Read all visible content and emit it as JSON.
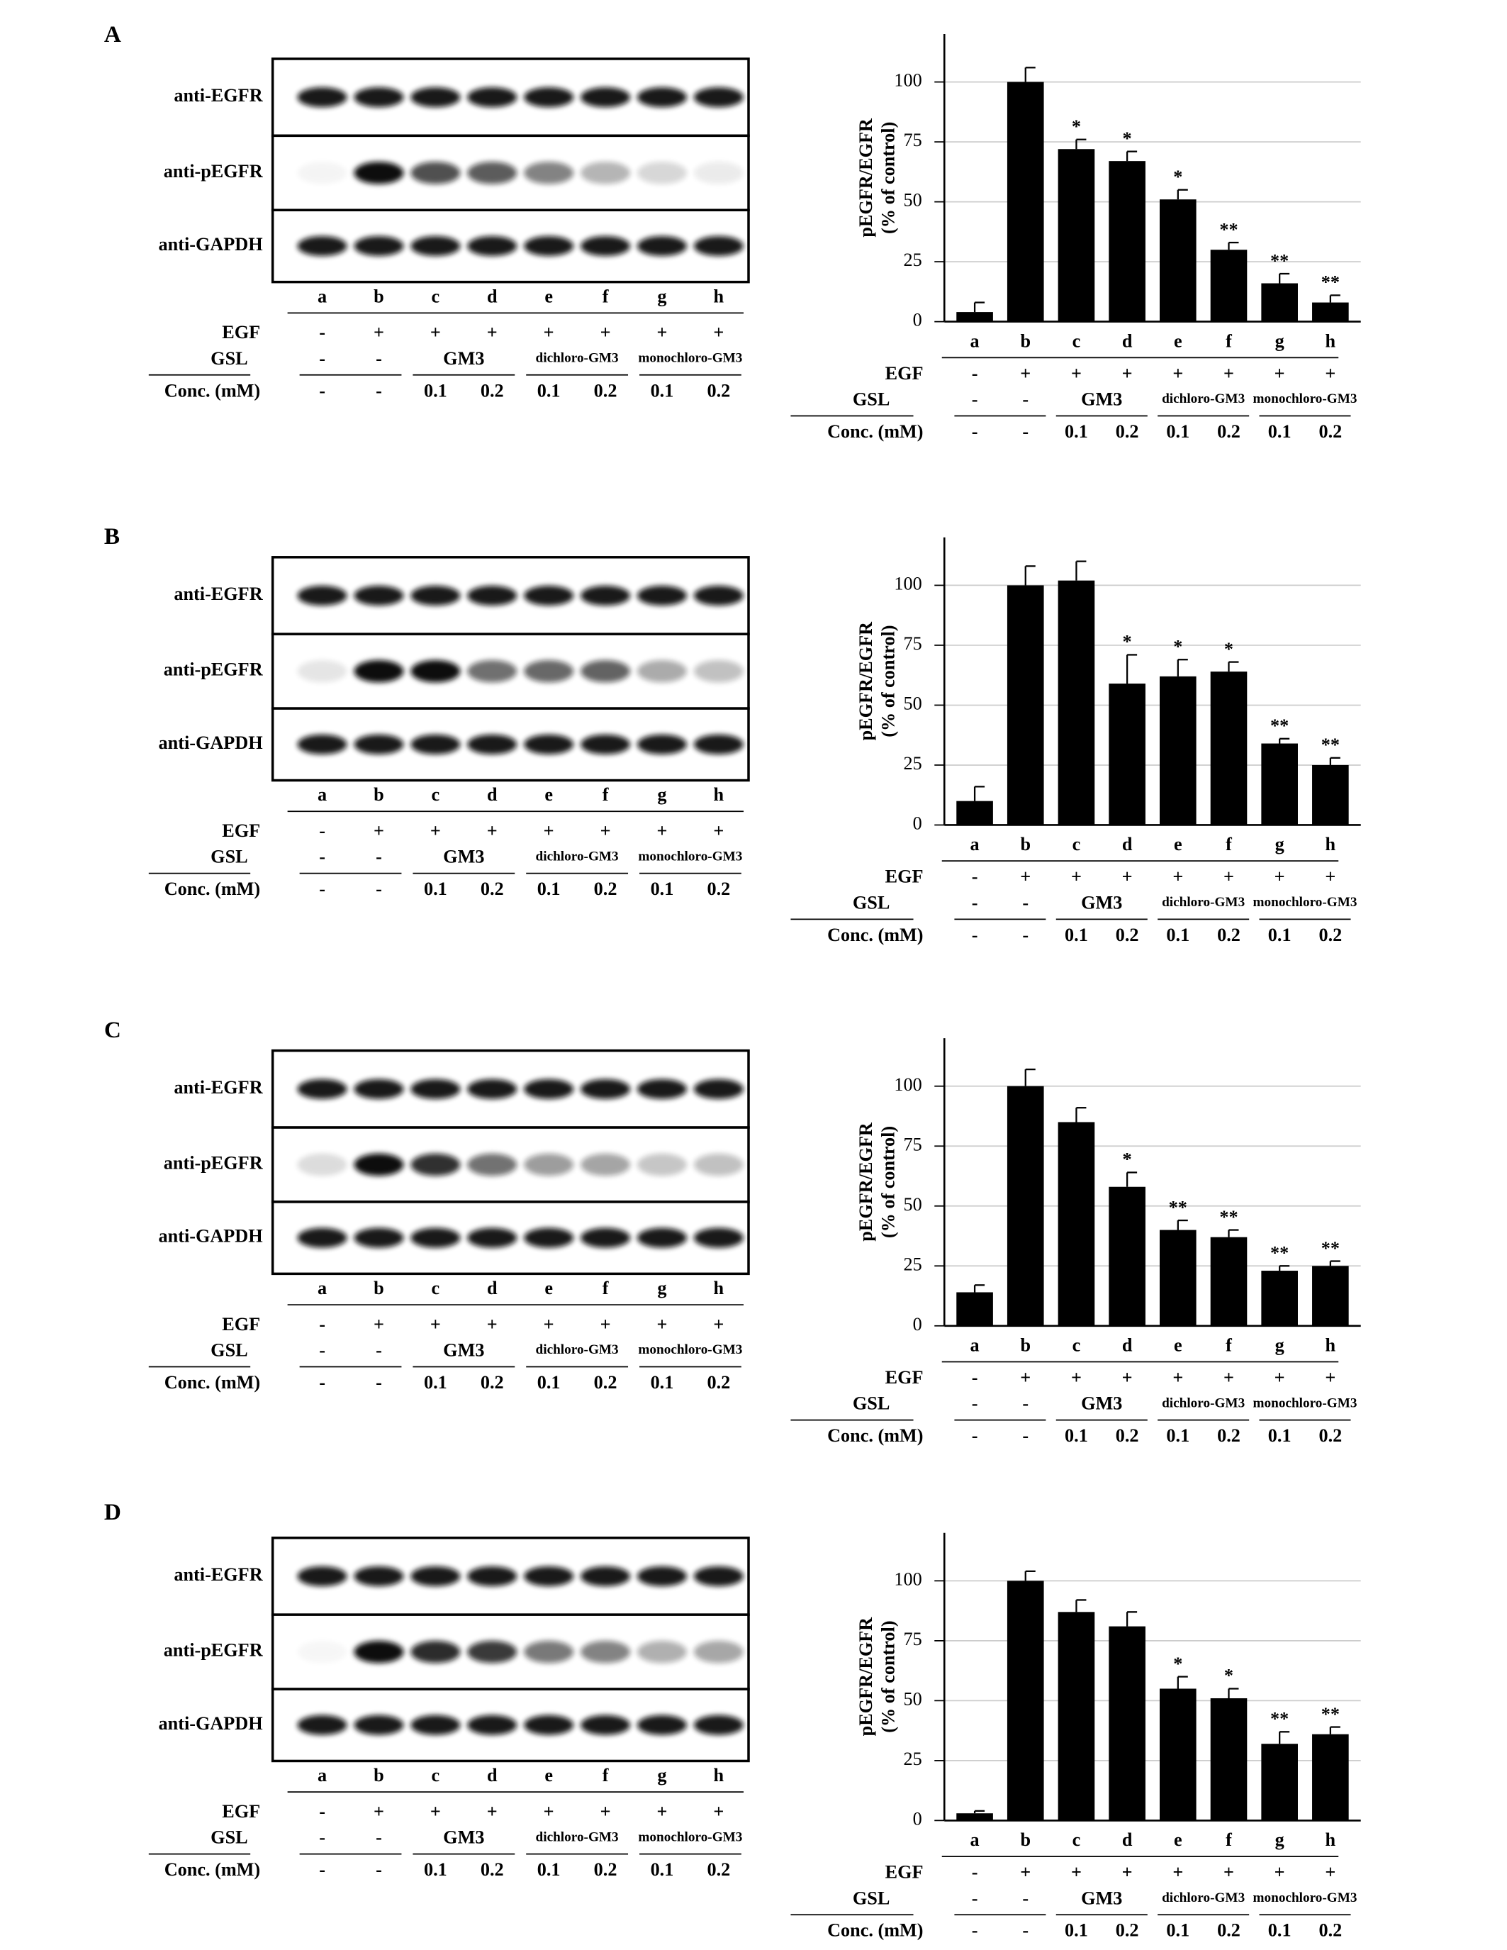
{
  "blots": [
    {
      "panel": "A",
      "rows": [
        "anti-EGFR",
        "anti-pEGFR",
        "anti-GAPDH"
      ]
    },
    {
      "panel": "B",
      "rows": [
        "anti-EGFR",
        "anti-pEGFR",
        "anti-GAPDH"
      ]
    },
    {
      "panel": "C",
      "rows": [
        "anti-EGFR",
        "anti-pEGFR",
        "anti-GAPDH"
      ]
    },
    {
      "panel": "D",
      "rows": [
        "anti-EGFR",
        "anti-pEGFR",
        "anti-GAPDH"
      ]
    }
  ],
  "treatments": {
    "rows": [
      {
        "label": "EGF",
        "values": [
          "-",
          "+",
          "+",
          "+",
          "+",
          "+",
          "+",
          "+"
        ]
      },
      {
        "label": "GSL",
        "values": [
          "-",
          "-"
        ],
        "groups": [
          "GM3",
          "dichloro-GM3",
          "monochloro-GM3"
        ]
      },
      {
        "label": "Conc. (mM)",
        "values": [
          "-",
          "-",
          "0.1",
          "0.2",
          "0.1",
          "0.2",
          "0.1",
          "0.2"
        ]
      }
    ]
  },
  "chart_data": [
    {
      "type": "bar",
      "ylabel": [
        "pEGFR/EGFR",
        "(% of control)"
      ],
      "categories": [
        "a",
        "b",
        "c",
        "d",
        "e",
        "f",
        "g",
        "h"
      ],
      "values": [
        4,
        100,
        72,
        67,
        51,
        30,
        16,
        8
      ],
      "errors": [
        4,
        6,
        4,
        4,
        4,
        3,
        4,
        3
      ],
      "annotations": [
        null,
        null,
        "*",
        "*",
        "*",
        "**",
        "**",
        "**"
      ],
      "color": "#000000",
      "ylim": [
        0,
        120
      ],
      "yticks": [
        0,
        25,
        50,
        75,
        100
      ],
      "grid": true
    },
    {
      "type": "bar",
      "ylabel": [
        "pEGFR/EGFR",
        "(% of control)"
      ],
      "categories": [
        "a",
        "b",
        "c",
        "d",
        "e",
        "f",
        "g",
        "h"
      ],
      "values": [
        10,
        100,
        102,
        59,
        62,
        64,
        34,
        25
      ],
      "errors": [
        6,
        8,
        8,
        12,
        7,
        4,
        2,
        3
      ],
      "annotations": [
        null,
        null,
        null,
        "*",
        "*",
        "*",
        "**",
        "**"
      ],
      "color": "#000000",
      "ylim": [
        0,
        120
      ],
      "yticks": [
        0,
        25,
        50,
        75,
        100
      ],
      "grid": true
    },
    {
      "type": "bar",
      "ylabel": [
        "pEGFR/EGFR",
        "(% of control)"
      ],
      "categories": [
        "a",
        "b",
        "c",
        "d",
        "e",
        "f",
        "g",
        "h"
      ],
      "values": [
        14,
        100,
        85,
        58,
        40,
        37,
        23,
        25
      ],
      "errors": [
        3,
        7,
        6,
        6,
        4,
        3,
        2,
        2
      ],
      "annotations": [
        null,
        null,
        null,
        "*",
        "**",
        "**",
        "**",
        "**"
      ],
      "color": "#000000",
      "ylim": [
        0,
        120
      ],
      "yticks": [
        0,
        25,
        50,
        75,
        100
      ],
      "grid": true
    },
    {
      "type": "bar",
      "ylabel": [
        "pEGFR/EGFR",
        "(% of control)"
      ],
      "categories": [
        "a",
        "b",
        "c",
        "d",
        "e",
        "f",
        "g",
        "h"
      ],
      "values": [
        3,
        100,
        87,
        81,
        55,
        51,
        32,
        36
      ],
      "errors": [
        1,
        4,
        5,
        6,
        5,
        4,
        5,
        3
      ],
      "annotations": [
        null,
        null,
        null,
        null,
        "*",
        "*",
        "**",
        "**"
      ],
      "color": "#000000",
      "ylim": [
        0,
        120
      ],
      "yticks": [
        0,
        25,
        50,
        75,
        100
      ],
      "grid": true
    }
  ]
}
